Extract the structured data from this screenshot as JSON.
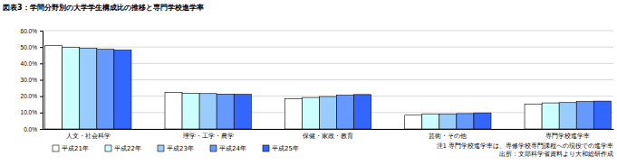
{
  "chart_data": {
    "type": "bar",
    "title": "図表3：学問分野別の大学学生構成比の推移と専門学校進学率",
    "categories": [
      "人文・社会科学",
      "理学・工学・農学",
      "保健・家政・教育",
      "芸術・その他",
      "専門学校進学率"
    ],
    "series": [
      {
        "name": "平成21年",
        "color": "#ffffff",
        "values": [
          50.8,
          22.3,
          18.5,
          8.4,
          15.1
        ]
      },
      {
        "name": "平成22年",
        "color": "#ccffff",
        "values": [
          49.9,
          21.8,
          19.2,
          9.1,
          15.9
        ]
      },
      {
        "name": "平成23年",
        "color": "#99ccff",
        "values": [
          49.3,
          21.6,
          19.8,
          9.2,
          16.1
        ]
      },
      {
        "name": "平成24年",
        "color": "#6699ff",
        "values": [
          48.6,
          21.3,
          20.6,
          9.4,
          16.7
        ]
      },
      {
        "name": "平成25年",
        "color": "#3366ff",
        "values": [
          48.1,
          21.1,
          21.0,
          9.8,
          17.0
        ]
      }
    ],
    "ylim": [
      0,
      60
    ],
    "yticks": [
      {
        "value": 0,
        "label": "0.0%"
      },
      {
        "value": 10,
        "label": "10.0%"
      },
      {
        "value": 20,
        "label": "20.0%"
      },
      {
        "value": 30,
        "label": "30.0%"
      },
      {
        "value": 40,
        "label": "40.0%"
      },
      {
        "value": 50,
        "label": "50.0%"
      },
      {
        "value": 60,
        "label": "60.0%"
      }
    ],
    "grid": true,
    "annotations": [
      "注1 専門学校進学率は、専修学校専門課程への現役での進学率",
      "出所：文部科学省資料より大和総研作成"
    ]
  }
}
